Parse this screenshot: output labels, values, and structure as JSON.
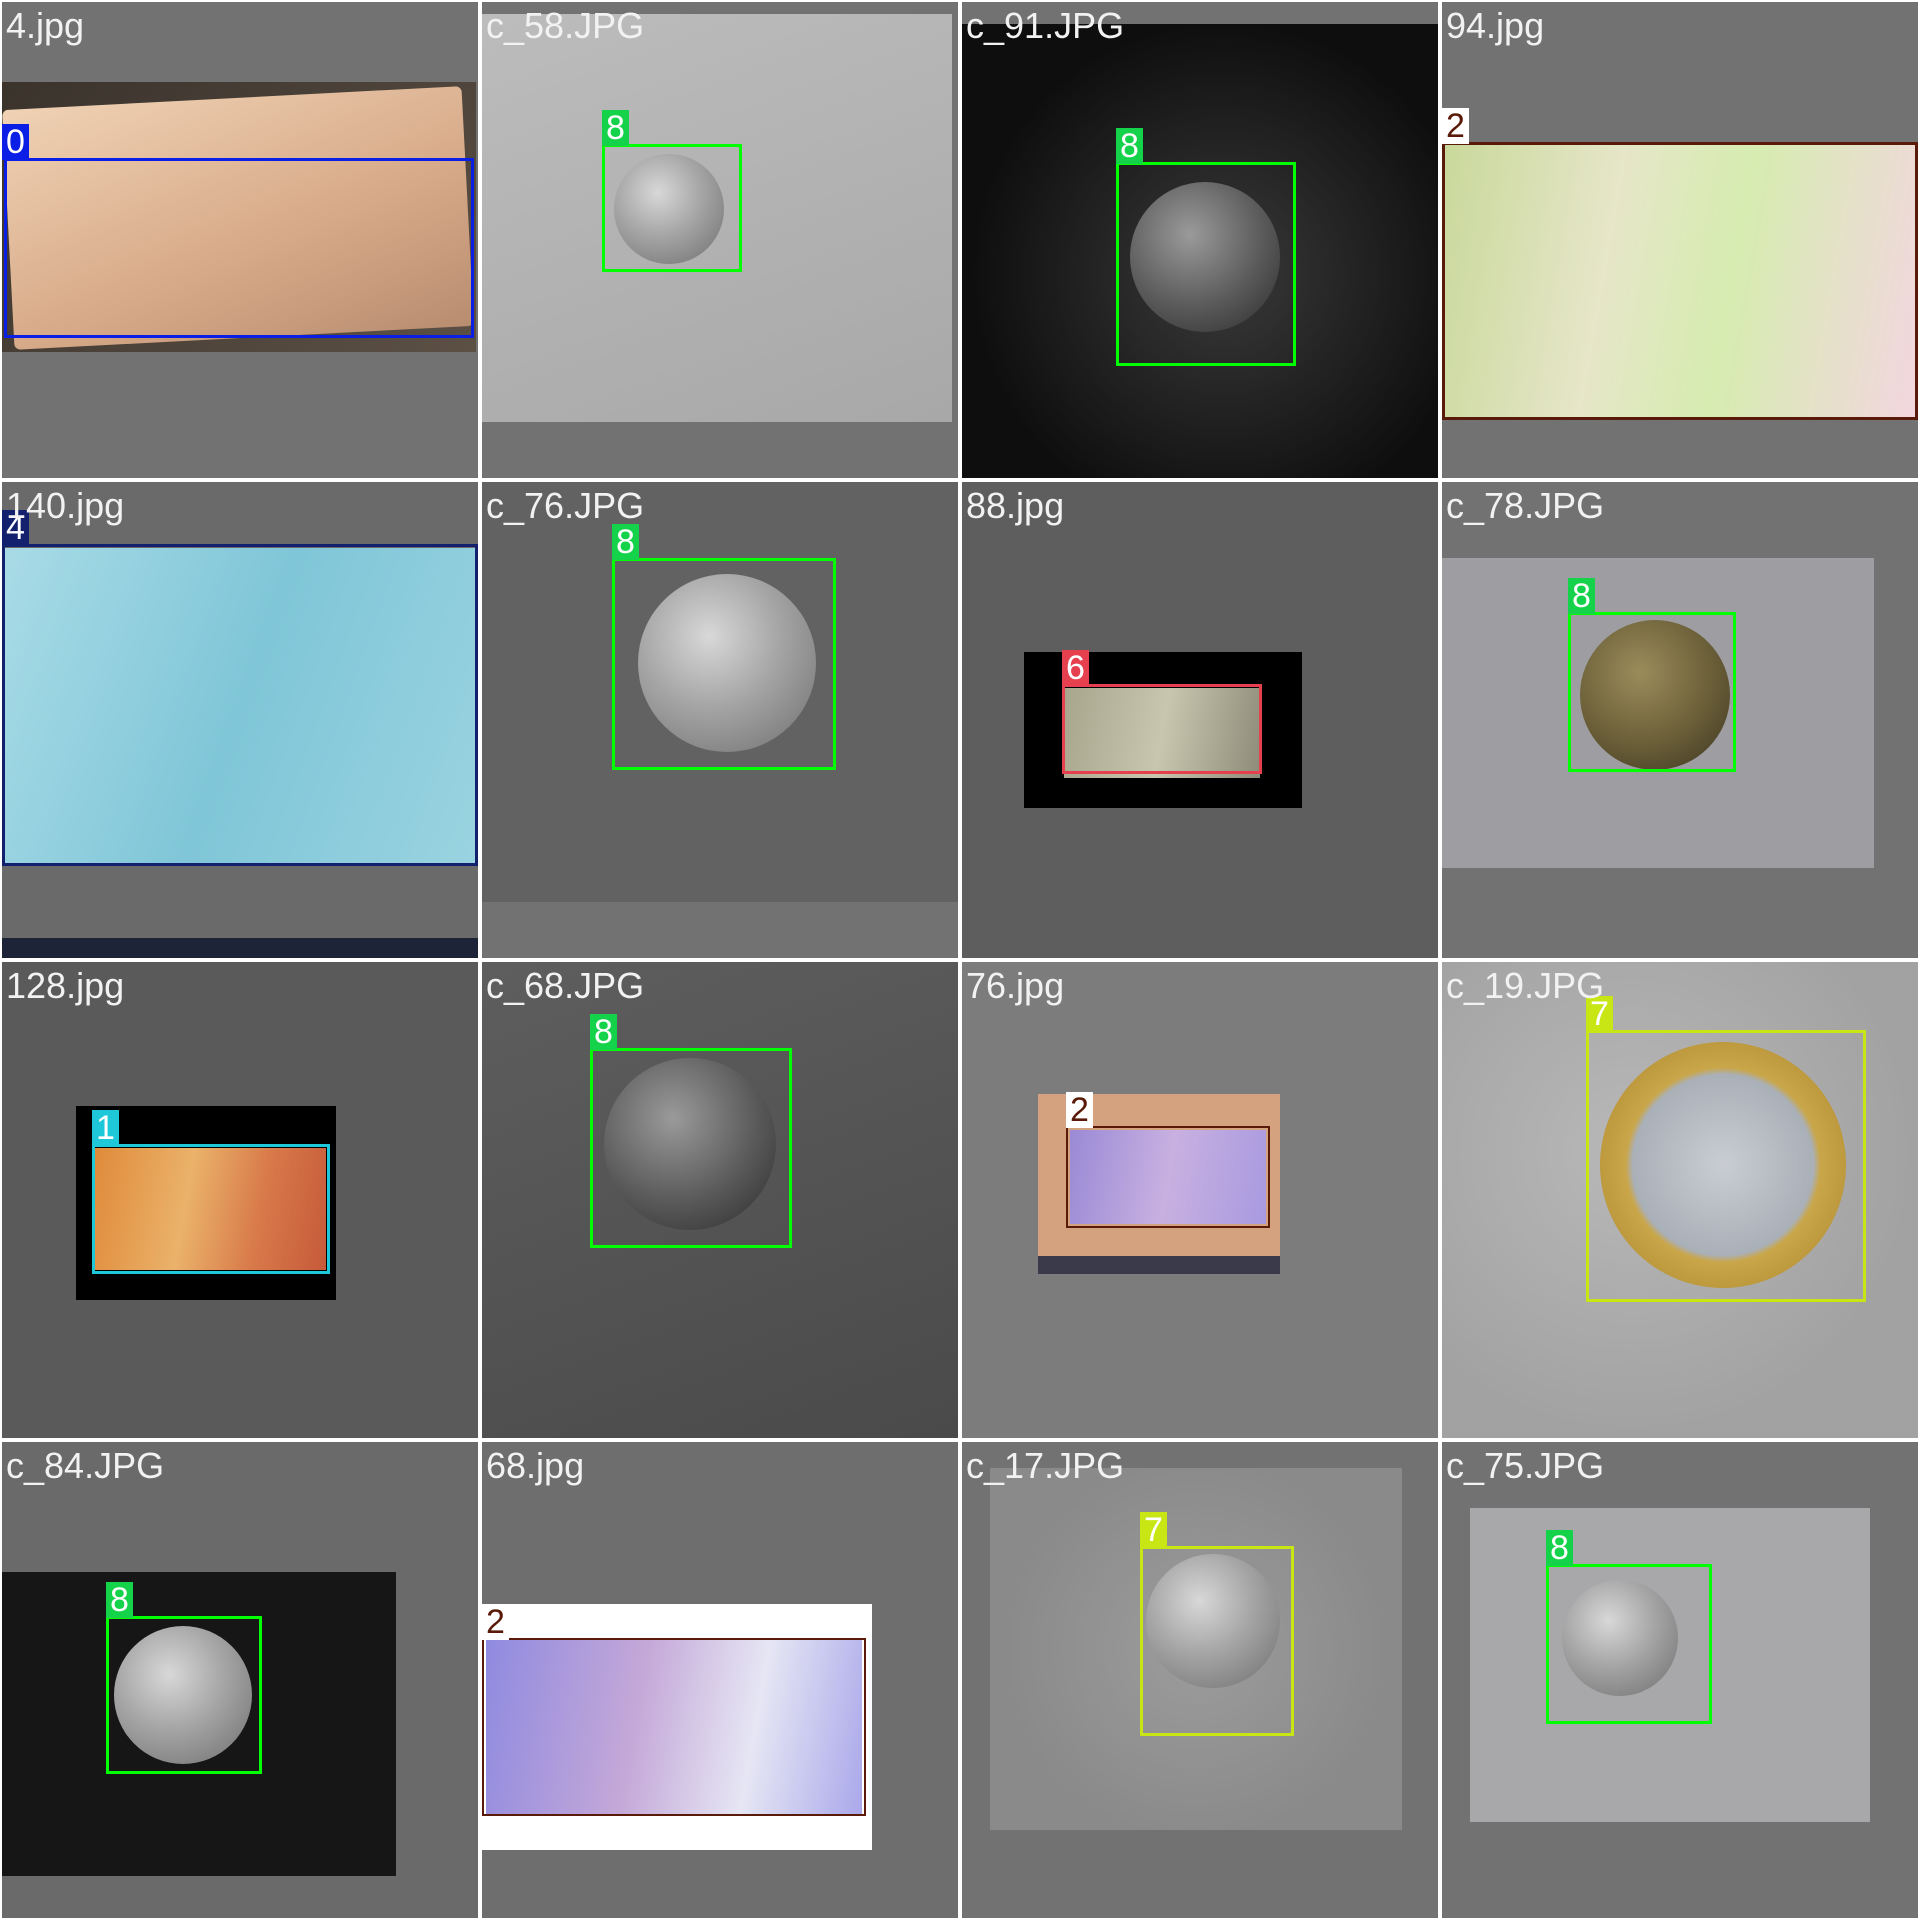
{
  "tiles": [
    {
      "filename": "4.jpg",
      "label": "0",
      "color": "#0a1ee6"
    },
    {
      "filename": "c_58.JPG",
      "label": "8",
      "color": "#14d24a"
    },
    {
      "filename": "c_91.JPG",
      "label": "8",
      "color": "#14d24a"
    },
    {
      "filename": "94.jpg",
      "label": "2",
      "color": "#5a1a0a"
    },
    {
      "filename": "140.jpg",
      "label": "4",
      "color": "#12206e"
    },
    {
      "filename": "c_76.JPG",
      "label": "8",
      "color": "#14d24a"
    },
    {
      "filename": "88.jpg",
      "label": "6",
      "color": "#e6404f"
    },
    {
      "filename": "c_78.JPG",
      "label": "8",
      "color": "#14d24a"
    },
    {
      "filename": "128.jpg",
      "label": "1",
      "color": "#1ec8d8"
    },
    {
      "filename": "c_68.JPG",
      "label": "8",
      "color": "#14d24a"
    },
    {
      "filename": "76.jpg",
      "label": "2",
      "color": "#5a1a0a"
    },
    {
      "filename": "c_19.JPG",
      "label": "7",
      "color": "#c8e614"
    },
    {
      "filename": "c_84.JPG",
      "label": "8",
      "color": "#14d24a"
    },
    {
      "filename": "68.jpg",
      "label": "2",
      "color": "#5a1a0a"
    },
    {
      "filename": "c_17.JPG",
      "label": "7",
      "color": "#c8e614"
    },
    {
      "filename": "c_75.JPG",
      "label": "8",
      "color": "#14d24a"
    }
  ]
}
